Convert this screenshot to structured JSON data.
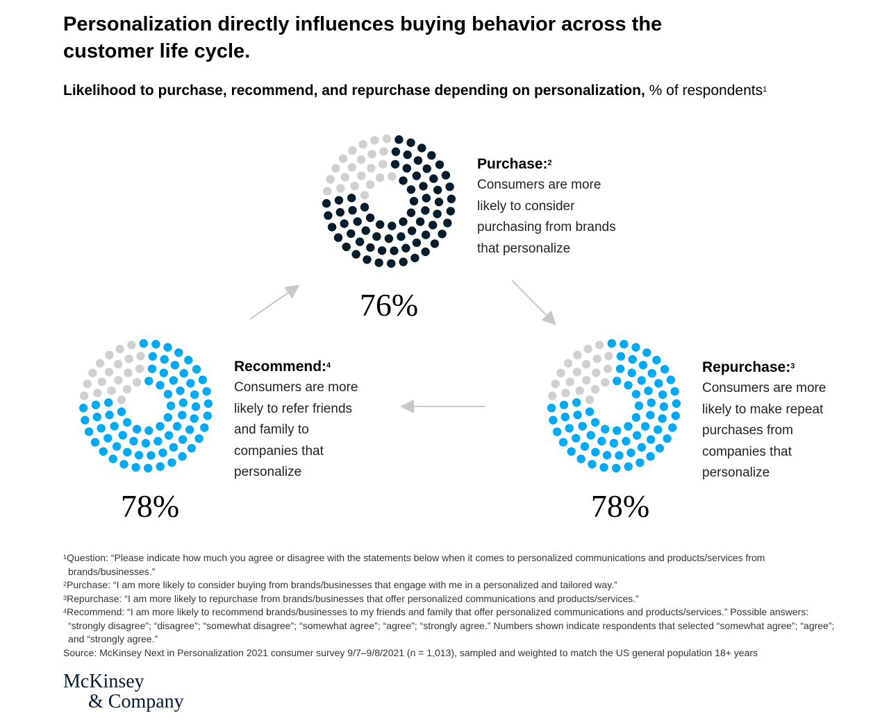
{
  "title": "Personalization directly influences buying behavior across the customer life cycle.",
  "subtitle": {
    "bold": "Likelihood to purchase, recommend, and repurchase depending on personalization,",
    "normal": " % of respondents",
    "sup": "1"
  },
  "colors": {
    "navy": "#051c2c",
    "blue": "#00a9f4",
    "gray": "#d0d0d0",
    "arrow": "#c8c8c8"
  },
  "chart_data": {
    "type": "dot-proportion",
    "items": [
      {
        "key": "purchase",
        "label": "Purchase:",
        "sup": "2",
        "value": 76,
        "percent_label": "76%",
        "color": "#051c2c",
        "lines": [
          "Consumers are more",
          "likely to consider",
          "purchasing from brands",
          "that personalize"
        ]
      },
      {
        "key": "repurchase",
        "label": "Repurchase:",
        "sup": "3",
        "value": 78,
        "percent_label": "78%",
        "color": "#00a9f4",
        "lines": [
          "Consumers are more",
          "likely to make repeat",
          "purchases from",
          "companies that",
          "personalize"
        ]
      },
      {
        "key": "recommend",
        "label": "Recommend:",
        "sup": "4",
        "value": 78,
        "percent_label": "78%",
        "color": "#00a9f4",
        "lines": [
          "Consumers are more",
          "likely to refer friends",
          "and family to",
          "companies that",
          "personalize"
        ]
      }
    ]
  },
  "footnotes": [
    {
      "sup": "1",
      "text": "Question: “Please indicate how much you agree or disagree with the statements below when it comes to personalized communications and products/services from brands/businesses.”"
    },
    {
      "sup": "2",
      "text": "Purchase: “I am more likely to consider buying from brands/businesses that engage with me in a personalized and tailored way.”"
    },
    {
      "sup": "3",
      "text": "Repurchase: “I am more likely to repurchase from brands/businesses that offer personalized communications and products/services.”"
    },
    {
      "sup": "4",
      "text": "Recommend: “I am more likely to recommend brands/businesses to my friends and family that offer personalized communications and products/services.” Possible answers: “strongly disagree”; “disagree”; “somewhat disagree”; “somewhat agree”; “agree”; “strongly agree.” Numbers shown indicate respondents that selected “somewhat agree”; “agree”; and “strongly agree.”"
    },
    {
      "sup": "",
      "text": "Source: McKinsey Next in Personalization 2021 consumer survey 9/7–9/8/2021 (n = 1,013), sampled and weighted to match the US general population 18+ years"
    }
  ],
  "logo": {
    "line1": "McKinsey",
    "line2": "& Company"
  }
}
